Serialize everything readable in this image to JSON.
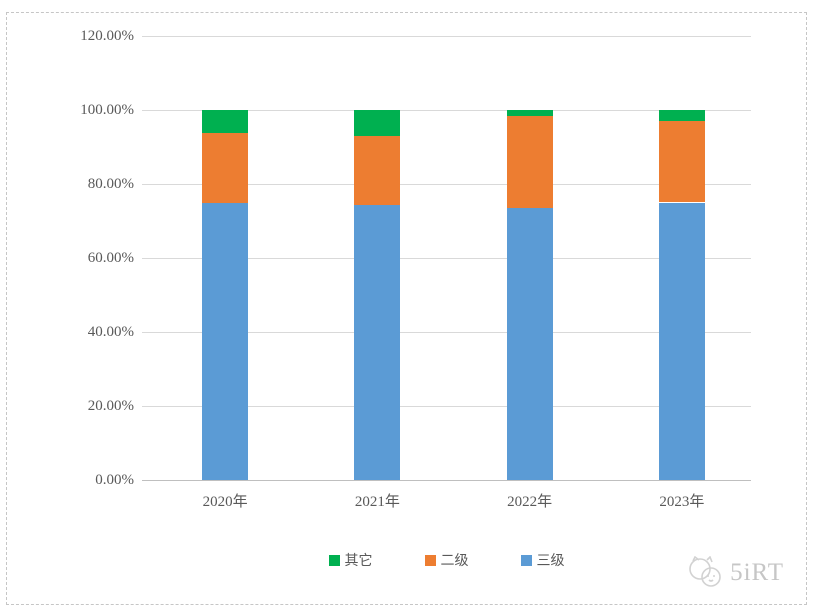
{
  "chart_data": {
    "type": "bar",
    "stacked": true,
    "stacking": "percent",
    "title": "",
    "categories": [
      "2020年",
      "2021年",
      "2022年",
      "2023年"
    ],
    "series": [
      {
        "name": "三级",
        "color": "#5B9BD5",
        "values": [
          74.9,
          74.4,
          73.6,
          75.0
        ]
      },
      {
        "name": "二级",
        "color": "#ED7D31",
        "values": [
          18.8,
          18.6,
          24.9,
          22.1
        ]
      },
      {
        "name": "其它",
        "color": "#00B050",
        "values": [
          6.3,
          7.0,
          1.5,
          2.9
        ]
      }
    ],
    "y_axis": {
      "min": 0,
      "max": 120,
      "step": 20,
      "tick_labels": [
        "0.00%",
        "20.00%",
        "40.00%",
        "60.00%",
        "80.00%",
        "100.00%",
        "120.00%"
      ]
    },
    "x_axis": {
      "labels": [
        "2020年",
        "2021年",
        "2022年",
        "2023年"
      ]
    },
    "grid": true,
    "legend": {
      "position": "bottom",
      "items": [
        "其它",
        "二级",
        "三级"
      ]
    }
  },
  "watermark": {
    "text": "5iRT"
  },
  "colors": {
    "gridline": "#d9d9d9",
    "axis_line": "#bfbfbf",
    "label_text": "#595959",
    "frame_border": "#c6c6c6",
    "watermark": "#c6c6c6"
  }
}
